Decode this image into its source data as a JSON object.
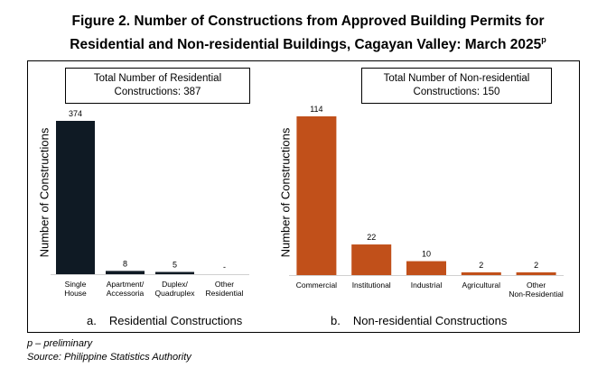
{
  "title": {
    "line1": "Figure 2. Number of Constructions from Approved Building Permits for",
    "line2": "Residential and Non-residential Buildings, Cagayan Valley: March 2025",
    "superscript": "p"
  },
  "footnotes": {
    "preliminary": "p – preliminary",
    "source": "Source: Philippine Statistics Authority"
  },
  "chart_data": [
    {
      "type": "bar",
      "summary_box": {
        "line1": "Total Number of Residential",
        "line2": "Constructions: 387"
      },
      "categories": [
        "Single House",
        "Apartment/ Accessoria",
        "Duplex/ Quadruplex",
        "Other Residential"
      ],
      "category_lines": [
        [
          "Single",
          "House"
        ],
        [
          "Apartment/",
          "Accessoria"
        ],
        [
          "Duplex/",
          "Quadruplex"
        ],
        [
          "Other",
          "Residential"
        ]
      ],
      "values": [
        374,
        8,
        5,
        0
      ],
      "data_labels": [
        "374",
        "8",
        "5",
        "-"
      ],
      "ylabel": "Number of Constructions",
      "caption_letter": "a.",
      "caption": "Residential Constructions",
      "color": "#0f1a24",
      "ylim": [
        0,
        374
      ]
    },
    {
      "type": "bar",
      "summary_box": {
        "line1": "Total Number of Non-residential",
        "line2": "Constructions: 150"
      },
      "categories": [
        "Commercial",
        "Institutional",
        "Industrial",
        "Agricultural",
        "Other Non-Residential"
      ],
      "category_lines": [
        [
          "Commercial"
        ],
        [
          "Institutional"
        ],
        [
          "Industrial"
        ],
        [
          "Agricultural"
        ],
        [
          "Other",
          "Non-Residential"
        ]
      ],
      "values": [
        114,
        22,
        10,
        2,
        2
      ],
      "data_labels": [
        "114",
        "22",
        "10",
        "2",
        "2"
      ],
      "ylabel": "Number of Constructions",
      "caption_letter": "b.",
      "caption": "Non-residential Constructions",
      "color": "#c1501a",
      "ylim": [
        0,
        114
      ]
    }
  ]
}
